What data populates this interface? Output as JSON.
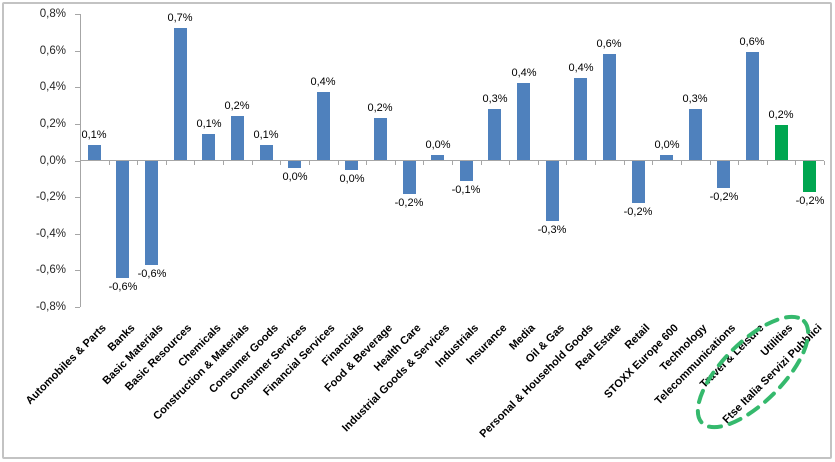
{
  "window": {
    "background_color": "#ffffff",
    "border_color": "#c3c3c3"
  },
  "chart_data": {
    "type": "bar",
    "title": "",
    "xlabel": "",
    "ylabel": "",
    "categories": [
      "Automobiles & Parts",
      "Banks",
      "Basic Materials",
      "Basic Resources",
      "Chemicals",
      "Construction & Materials",
      "Consumer Goods",
      "Consumer Services",
      "Financial Services",
      "Financials",
      "Food & Beverage",
      "Health Care",
      "Industrial Goods & Services",
      "Industrials",
      "Insurance",
      "Media",
      "Oil & Gas",
      "Personal & Household Goods",
      "Real Estate",
      "Retail",
      "STOXX Europe 600",
      "Technology",
      "Telecommunications",
      "Travel & Leisure",
      "Utilities",
      "Ftse Italia Servizi Pubblici"
    ],
    "values": [
      0.08,
      -0.64,
      -0.57,
      0.72,
      0.14,
      0.24,
      0.08,
      -0.04,
      0.37,
      -0.05,
      0.23,
      -0.18,
      0.03,
      -0.11,
      0.28,
      0.42,
      -0.33,
      0.45,
      0.58,
      -0.23,
      0.03,
      0.28,
      -0.15,
      0.59,
      0.19,
      -0.17
    ],
    "value_labels": [
      "0,1%",
      "-0,6%",
      "-0,6%",
      "0,7%",
      "0,1%",
      "0,2%",
      "0,1%",
      "0,0%",
      "0,4%",
      "0,0%",
      "0,2%",
      "-0,2%",
      "0,0%",
      "-0,1%",
      "0,3%",
      "0,4%",
      "-0,3%",
      "0,4%",
      "0,6%",
      "-0,2%",
      "0,0%",
      "0,3%",
      "-0,2%",
      "0,6%",
      "0,2%",
      "-0,2%"
    ],
    "ylim": [
      -0.8,
      0.8
    ],
    "ytick_step": 0.2,
    "ytick_labels": [
      "0,8%",
      "0,6%",
      "0,4%",
      "0,2%",
      "0,0%",
      "-0,2%",
      "-0,4%",
      "-0,6%",
      "-0,8%"
    ],
    "grid": "off",
    "legend": "none",
    "bar_color_default": "#4F81BD",
    "bar_color_highlight": "#00A650",
    "highlight_indices": [
      24,
      25
    ],
    "annotation": {
      "shape": "dashed-ellipse",
      "color": "#35B96D",
      "around_categories": [
        "Utilities",
        "Ftse Italia Servizi Pubblici"
      ]
    }
  }
}
